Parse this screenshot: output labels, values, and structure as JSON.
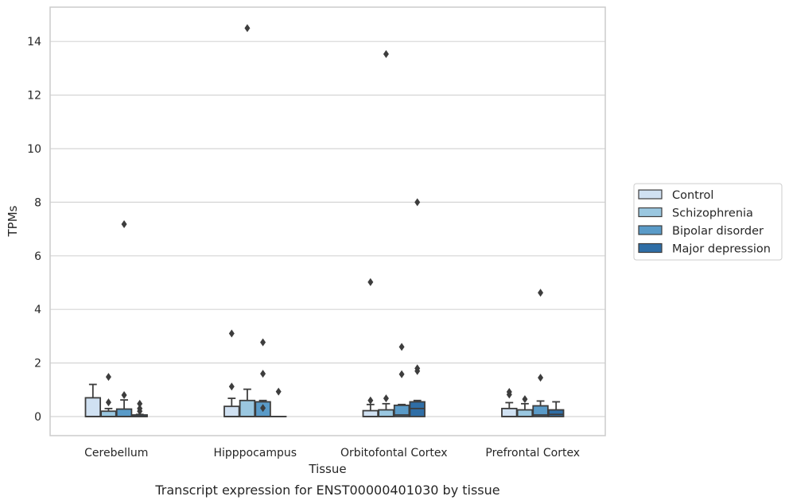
{
  "chart_data": {
    "type": "box",
    "caption": "Transcript expression for ENST00000401030 by tissue",
    "xlabel": "Tissue",
    "ylabel": "TPMs",
    "ylim": [
      -0.7,
      15.2
    ],
    "yticks": [
      0,
      2,
      4,
      6,
      8,
      10,
      12,
      14
    ],
    "grid": true,
    "legend_position": "right",
    "categories": [
      "Cerebellum",
      "Hipppocampus",
      "Orbitofontal Cortex",
      "Prefrontal Cortex"
    ],
    "series": [
      {
        "name": "Control",
        "color": "#d0e1f2",
        "boxes": [
          {
            "whisker_low": 0,
            "q1": 0,
            "median": 0,
            "q3": 0.7,
            "whisker_high": 1.2,
            "outliers": []
          },
          {
            "whisker_low": 0,
            "q1": 0,
            "median": 0,
            "q3": 0.38,
            "whisker_high": 0.68,
            "outliers": [
              1.12,
              3.1
            ]
          },
          {
            "whisker_low": 0,
            "q1": 0,
            "median": 0,
            "q3": 0.22,
            "whisker_high": 0.45,
            "outliers": [
              0.6,
              5.02
            ]
          },
          {
            "whisker_low": 0,
            "q1": 0,
            "median": 0,
            "q3": 0.3,
            "whisker_high": 0.52,
            "outliers": [
              0.82,
              0.92
            ]
          }
        ]
      },
      {
        "name": "Schizophrenia",
        "color": "#9ac7e0",
        "boxes": [
          {
            "whisker_low": 0,
            "q1": 0,
            "median": 0,
            "q3": 0.2,
            "whisker_high": 0.3,
            "outliers": [
              0.53,
              1.48
            ]
          },
          {
            "whisker_low": 0,
            "q1": 0,
            "median": 0,
            "q3": 0.6,
            "whisker_high": 1.02,
            "outliers": [
              14.5
            ]
          },
          {
            "whisker_low": 0,
            "q1": 0,
            "median": 0,
            "q3": 0.25,
            "whisker_high": 0.48,
            "outliers": [
              0.68,
              13.53
            ]
          },
          {
            "whisker_low": 0,
            "q1": 0,
            "median": 0,
            "q3": 0.25,
            "whisker_high": 0.48,
            "outliers": [
              0.65
            ]
          }
        ]
      },
      {
        "name": "Bipolar disorder",
        "color": "#5a9bc8",
        "boxes": [
          {
            "whisker_low": 0,
            "q1": 0,
            "median": 0,
            "q3": 0.28,
            "whisker_high": 0.62,
            "outliers": [
              0.8,
              7.18
            ]
          },
          {
            "whisker_low": 0,
            "q1": 0,
            "median": 0,
            "q3": 0.55,
            "whisker_high": 0.6,
            "outliers": [
              0.32,
              1.6,
              2.77
            ]
          },
          {
            "whisker_low": 0,
            "q1": 0,
            "median": 0.06,
            "q3": 0.42,
            "whisker_high": 0.45,
            "outliers": [
              1.58,
              2.6
            ]
          },
          {
            "whisker_low": 0,
            "q1": 0,
            "median": 0.06,
            "q3": 0.4,
            "whisker_high": 0.58,
            "outliers": [
              1.45,
              4.62
            ]
          }
        ]
      },
      {
        "name": "Major depression",
        "color": "#2f6ea6",
        "boxes": [
          {
            "whisker_low": 0,
            "q1": 0,
            "median": 0,
            "q3": 0.06,
            "whisker_high": 0.08,
            "outliers": [
              0.2,
              0.3,
              0.48
            ]
          },
          {
            "whisker_low": 0,
            "q1": 0,
            "median": 0,
            "q3": 0,
            "whisker_high": 0,
            "outliers": [
              0.93
            ]
          },
          {
            "whisker_low": 0,
            "q1": 0,
            "median": 0.3,
            "q3": 0.55,
            "whisker_high": 0.6,
            "outliers": [
              1.7,
              1.8,
              8.0
            ]
          },
          {
            "whisker_low": 0,
            "q1": 0,
            "median": 0.08,
            "q3": 0.25,
            "whisker_high": 0.55,
            "outliers": []
          }
        ]
      }
    ]
  }
}
